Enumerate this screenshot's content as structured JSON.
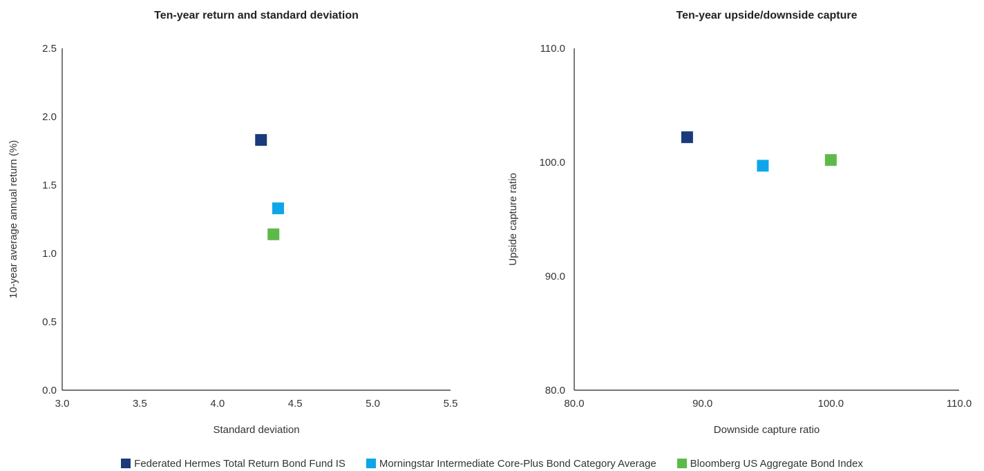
{
  "chart_data": [
    {
      "type": "scatter",
      "title": "Ten-year return and standard deviation",
      "xlabel": "Standard deviation",
      "ylabel": "10-year average annual return (%)",
      "xlim": [
        3.0,
        5.5
      ],
      "ylim": [
        0.0,
        2.5
      ],
      "xticks": [
        "3.0",
        "3.5",
        "4.0",
        "4.5",
        "5.0",
        "5.5"
      ],
      "yticks": [
        "0.0",
        "0.5",
        "1.0",
        "1.5",
        "2.0",
        "2.5"
      ],
      "grid": false,
      "series": [
        {
          "name": "Federated Hermes Total Return Bond Fund IS",
          "color": "#1a3a7a",
          "points": [
            [
              4.28,
              1.83
            ]
          ]
        },
        {
          "name": "Morningstar Intermediate Core-Plus Bond Category Average",
          "color": "#0ea5e9",
          "points": [
            [
              4.39,
              1.33
            ]
          ]
        },
        {
          "name": "Bloomberg US Aggregate Bond Index",
          "color": "#5dba4a",
          "points": [
            [
              4.36,
              1.14
            ]
          ]
        }
      ]
    },
    {
      "type": "scatter",
      "title": "Ten-year upside/downside capture",
      "xlabel": "Downside capture ratio",
      "ylabel": "Upside capture ratio",
      "xlim": [
        80.0,
        110.0
      ],
      "ylim": [
        80.0,
        110.0
      ],
      "xticks": [
        "80.0",
        "90.0",
        "100.0",
        "110.0"
      ],
      "yticks": [
        "80.0",
        "90.0",
        "100.0",
        "110.0"
      ],
      "grid": false,
      "series": [
        {
          "name": "Federated Hermes Total Return Bond Fund IS",
          "color": "#1a3a7a",
          "points": [
            [
              88.8,
              102.2
            ]
          ]
        },
        {
          "name": "Morningstar Intermediate Core-Plus Bond Category Average",
          "color": "#0ea5e9",
          "points": [
            [
              94.7,
              99.7
            ]
          ]
        },
        {
          "name": "Bloomberg US Aggregate Bond Index",
          "color": "#5dba4a",
          "points": [
            [
              100.0,
              100.2
            ]
          ]
        }
      ]
    }
  ],
  "legend": {
    "placement": "bottom",
    "items": [
      {
        "label": "Federated Hermes Total Return Bond Fund IS",
        "color": "#1a3a7a"
      },
      {
        "label": "Morningstar Intermediate Core-Plus Bond Category Average",
        "color": "#0ea5e9"
      },
      {
        "label": "Bloomberg US Aggregate Bond Index",
        "color": "#5dba4a"
      }
    ]
  }
}
